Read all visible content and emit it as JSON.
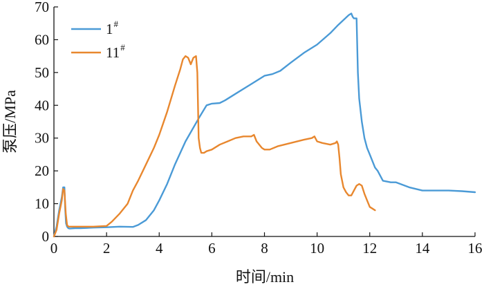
{
  "chart_data": {
    "type": "line",
    "title": "",
    "xlabel": "时间/min",
    "ylabel": "泵压/MPa",
    "xlim": [
      0,
      16
    ],
    "ylim": [
      0,
      70
    ],
    "xticks": [
      0,
      2,
      4,
      6,
      8,
      10,
      12,
      14,
      16
    ],
    "yticks": [
      0,
      10,
      20,
      30,
      40,
      50,
      60,
      70
    ],
    "grid": false,
    "legend_position": "top-left",
    "series": [
      {
        "name": "1#",
        "label_main": "1",
        "label_sup": "#",
        "color": "#4a9ad6",
        "x": [
          0,
          0.1,
          0.2,
          0.3,
          0.35,
          0.4,
          0.43,
          0.46,
          0.5,
          0.55,
          0.6,
          0.8,
          1.0,
          1.5,
          2.0,
          2.5,
          3.0,
          3.2,
          3.5,
          3.8,
          4.0,
          4.3,
          4.6,
          5.0,
          5.5,
          5.8,
          6.0,
          6.3,
          6.5,
          7.0,
          7.5,
          8.0,
          8.3,
          8.6,
          9.0,
          9.5,
          10.0,
          10.5,
          10.8,
          11.0,
          11.2,
          11.3,
          11.35,
          11.4,
          11.5,
          11.55,
          11.6,
          11.7,
          11.8,
          11.9,
          12.0,
          12.1,
          12.2,
          12.3,
          12.5,
          12.8,
          13.0,
          13.5,
          14.0,
          14.5,
          15.0,
          15.5,
          16.0
        ],
        "y": [
          0,
          3,
          8,
          12,
          15,
          15,
          8,
          4,
          3,
          2.5,
          2.4,
          2.5,
          2.5,
          2.7,
          2.8,
          3.0,
          2.9,
          3.5,
          5.0,
          8.0,
          11,
          16,
          22,
          29,
          36,
          40,
          40.5,
          40.7,
          41.5,
          44,
          46.5,
          49,
          49.5,
          50.5,
          53,
          56,
          58.5,
          62,
          64.5,
          66,
          67.5,
          68,
          67,
          66.5,
          66.5,
          50,
          42,
          35,
          30,
          27,
          25,
          23,
          21,
          20,
          17,
          16.5,
          16.5,
          15,
          14,
          14,
          14,
          13.8,
          13.5
        ]
      },
      {
        "name": "11#",
        "label_main": "11",
        "label_sup": "#",
        "color": "#e8872e",
        "x": [
          0,
          0.1,
          0.2,
          0.3,
          0.35,
          0.4,
          0.45,
          0.5,
          0.55,
          0.6,
          0.8,
          1.0,
          1.5,
          2.0,
          2.2,
          2.5,
          2.8,
          3.0,
          3.2,
          3.5,
          3.8,
          4.0,
          4.3,
          4.6,
          4.8,
          4.9,
          5.0,
          5.1,
          5.2,
          5.3,
          5.4,
          5.45,
          5.5,
          5.55,
          5.6,
          5.7,
          5.8,
          6.0,
          6.3,
          6.6,
          6.9,
          7.2,
          7.5,
          7.6,
          7.7,
          7.9,
          8.0,
          8.2,
          8.5,
          9.0,
          9.5,
          9.8,
          9.9,
          10.0,
          10.2,
          10.5,
          10.7,
          10.75,
          10.8,
          10.85,
          10.9,
          11.0,
          11.1,
          11.2,
          11.3,
          11.4,
          11.5,
          11.6,
          11.7,
          11.8,
          11.9,
          12.0,
          12.1,
          12.2
        ],
        "y": [
          0,
          2,
          7,
          11,
          14.5,
          14,
          7,
          3.5,
          3,
          3,
          3,
          3,
          3,
          3.2,
          4.5,
          7,
          10,
          14,
          17,
          22,
          27,
          31,
          38,
          46,
          51,
          54,
          55,
          54.5,
          52.5,
          54.5,
          55,
          50,
          30,
          27,
          25.5,
          25.5,
          26,
          26.5,
          28,
          29,
          30,
          30.5,
          30.5,
          31,
          29,
          27,
          26.5,
          26.5,
          27.5,
          28.5,
          29.5,
          30,
          30.5,
          29,
          28.5,
          28,
          28.5,
          29,
          28,
          24,
          19,
          15,
          13.5,
          12.5,
          12.5,
          14,
          15.5,
          16,
          15.5,
          13,
          11,
          9,
          8.5,
          8
        ]
      }
    ]
  }
}
